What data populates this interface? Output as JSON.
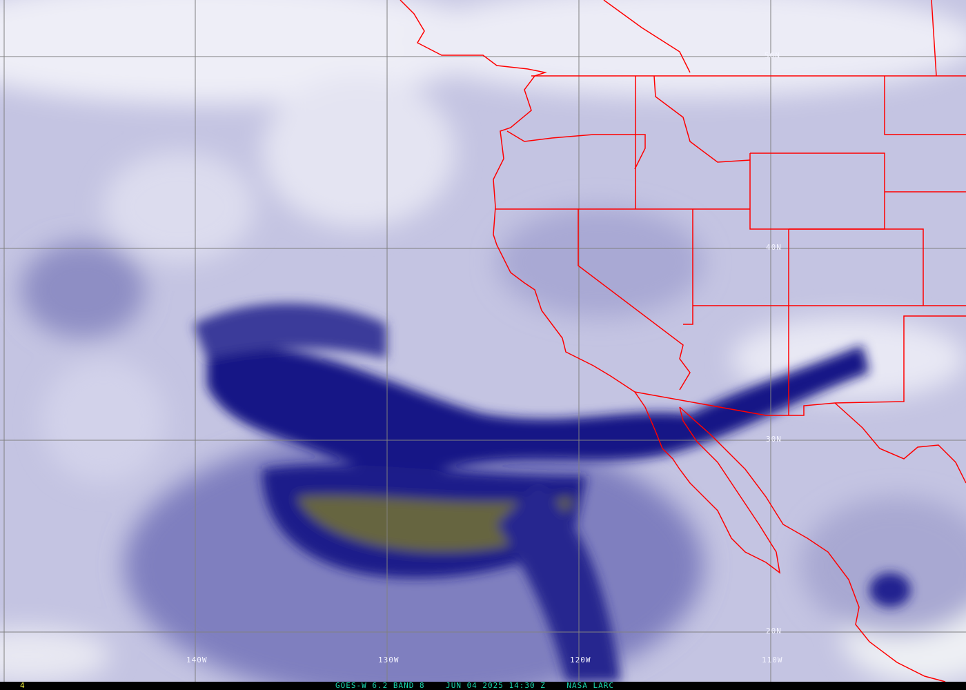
{
  "image": {
    "satellite": "GOES-W",
    "channel": "6.2",
    "band": "BAND 8",
    "date": "JUN 04 2025",
    "time": "14:30 Z",
    "source": "NASA LARC",
    "frame_number": "4",
    "caption": "GOES-W 6.2 BAND 8    JUN 04 2025 14:30 Z    NASA LARC"
  },
  "grid": {
    "latitude_labels": [
      "50N",
      "40N",
      "30N",
      "20N"
    ],
    "longitude_labels": [
      "140W",
      "130W",
      "120W",
      "110W"
    ]
  },
  "colors": {
    "dry": "#0a0a78",
    "moist": "#ececf6",
    "very_dry": "#6d6a3a",
    "borders": "#ff0000",
    "grid": "#808080",
    "caption_text": "#19d7b0",
    "frame_text": "#ffff40"
  }
}
